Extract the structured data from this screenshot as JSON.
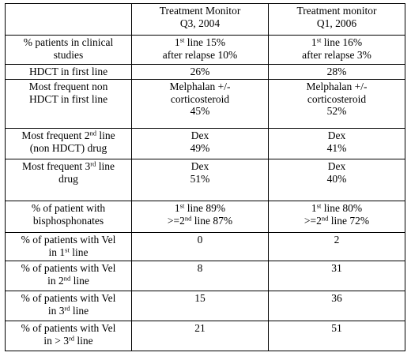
{
  "header": {
    "col1": "",
    "col2_line1": "Treatment Monitor",
    "col2_line2": "Q3, 2004",
    "col3_line1": "Treatment monitor",
    "col3_line2": "Q1, 2006"
  },
  "rows": {
    "clinical": {
      "label_line1": "% patients in clinical",
      "label_line2": "studies",
      "a_line1_pre": "1",
      "a_line1_sup": "st",
      "a_line1_post": " line 15%",
      "a_line2": "after relapse  10%",
      "b_line1_pre": "1",
      "b_line1_sup": "st",
      "b_line1_post": " line 16%",
      "b_line2": "after relapse 3%"
    },
    "hdct": {
      "label": "HDCT in first line",
      "a": "26%",
      "b": "28%"
    },
    "non_hdct": {
      "label_line1": "Most frequent non",
      "label_line2": "HDCT in first line",
      "a_line1": "Melphalan +/-",
      "a_line2": "corticosteroid",
      "a_line3": "45%",
      "b_line1": "Melphalan +/-",
      "b_line2": "corticosteroid",
      "b_line3": "52%"
    },
    "second": {
      "label_pre": "Most frequent 2",
      "label_sup": "nd",
      "label_post": " line",
      "label_line2": "(non HDCT) drug",
      "a_line1": "Dex",
      "a_line2": "49%",
      "b_line1": "Dex",
      "b_line2": "41%"
    },
    "third": {
      "label_pre": "Most frequent 3",
      "label_sup": "rd",
      "label_post": " line",
      "label_line2": "drug",
      "a_line1": "Dex",
      "a_line2": "51%",
      "b_line1": "Dex",
      "b_line2": "40%"
    },
    "bisphos": {
      "label_line1": "% of patient with",
      "label_line2": "bisphosphonates",
      "a_line1_pre": "1",
      "a_line1_sup": "st",
      "a_line1_post": " line 89%",
      "a_line2_pre": ">=2",
      "a_line2_sup": "nd",
      "a_line2_post": " line 87%",
      "b_line1_pre": "1",
      "b_line1_sup": "st",
      "b_line1_post": " line 80%",
      "b_line2_pre": ">=2",
      "b_line2_sup": "nd",
      "b_line2_post": " line 72%"
    },
    "vel1": {
      "label_line1": "% of patients with Vel",
      "label_pre": "in 1",
      "label_sup": "st",
      "label_post": " line",
      "a": "0",
      "b": "2"
    },
    "vel2": {
      "label_line1": "% of patients with Vel",
      "label_pre": "in 2",
      "label_sup": "nd",
      "label_post": "  line",
      "a": "8",
      "b": "31"
    },
    "vel3": {
      "label_line1": "% of patients with Vel",
      "label_pre": "in 3",
      "label_sup": "rd",
      "label_post": " line",
      "a": "15",
      "b": "36"
    },
    "vel_gt3": {
      "label_line1": "% of patients with Vel",
      "label_pre": "in > 3",
      "label_sup": "rd",
      "label_post": " line",
      "a": "21",
      "b": "51"
    }
  }
}
